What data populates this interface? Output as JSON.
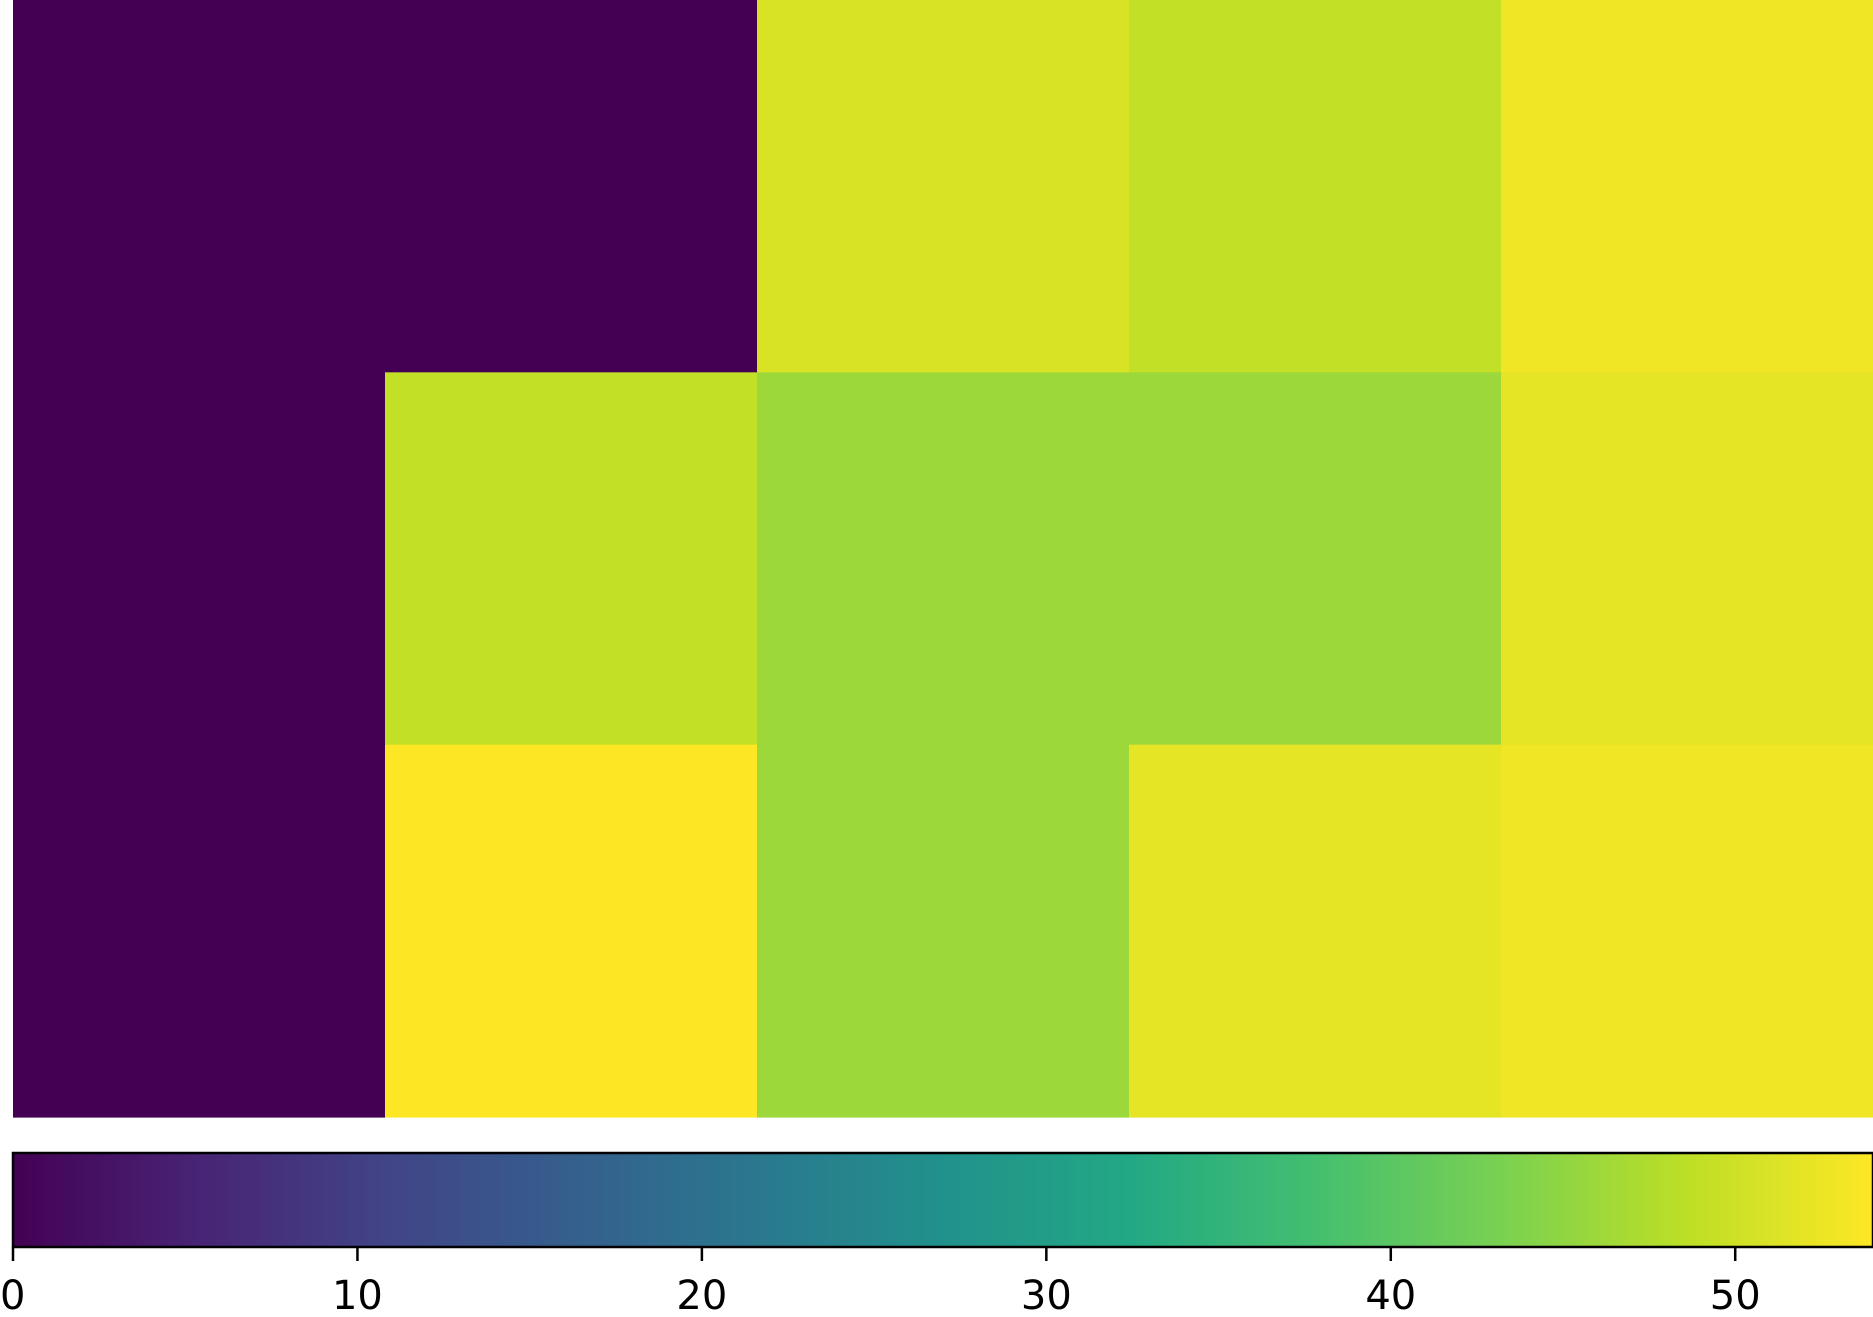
{
  "chart_data": {
    "type": "heatmap",
    "title": "",
    "xlabel": "",
    "ylabel": "",
    "rows": 3,
    "cols": 5,
    "values": [
      [
        0,
        0,
        51,
        49,
        53
      ],
      [
        0,
        49,
        46,
        46,
        52
      ],
      [
        0,
        54,
        46,
        52,
        53
      ]
    ],
    "colormap": "viridis",
    "colorbar": {
      "orientation": "horizontal",
      "range": [
        0,
        54
      ],
      "ticks": [
        {
          "value": 0,
          "label": "0"
        },
        {
          "value": 10,
          "label": "10"
        },
        {
          "value": 20,
          "label": "20"
        },
        {
          "value": 30,
          "label": "30"
        },
        {
          "value": 40,
          "label": "40"
        },
        {
          "value": 50,
          "label": "50"
        }
      ]
    }
  }
}
